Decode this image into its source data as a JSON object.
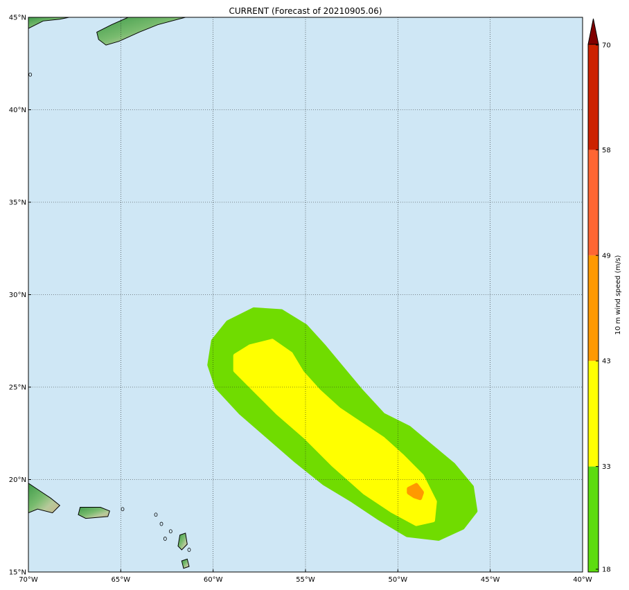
{
  "title": "CURRENT (Forecast of 20210905.06)",
  "map": {
    "lon_range": [
      -70,
      -40
    ],
    "lat_range": [
      15,
      45
    ],
    "lon_ticks": [
      {
        "value": -70,
        "label": "70°W"
      },
      {
        "value": -65,
        "label": "65°W"
      },
      {
        "value": -60,
        "label": "60°W"
      },
      {
        "value": -55,
        "label": "55°W"
      },
      {
        "value": -50,
        "label": "50°W"
      },
      {
        "value": -45,
        "label": "45°W"
      },
      {
        "value": -40,
        "label": "40°W"
      }
    ],
    "lat_ticks": [
      {
        "value": 15,
        "label": "15°N"
      },
      {
        "value": 20,
        "label": "20°N"
      },
      {
        "value": 25,
        "label": "25°N"
      },
      {
        "value": 30,
        "label": "30°N"
      },
      {
        "value": 35,
        "label": "35°N"
      },
      {
        "value": 40,
        "label": "40°N"
      },
      {
        "value": 45,
        "label": "45°N"
      }
    ],
    "ocean_color": "#cfe7f5",
    "grid": true,
    "swath": [
      {
        "threshold": 18,
        "color": "#70dc00",
        "lonlat": [
          [
            -57.8,
            29.2
          ],
          [
            -56.3,
            29.1
          ],
          [
            -55.0,
            28.3
          ],
          [
            -54.0,
            27.2
          ],
          [
            -53.0,
            26.0
          ],
          [
            -52.0,
            24.8
          ],
          [
            -50.8,
            23.5
          ],
          [
            -49.4,
            22.8
          ],
          [
            -48.2,
            21.8
          ],
          [
            -47.0,
            20.8
          ],
          [
            -46.0,
            19.6
          ],
          [
            -45.8,
            18.3
          ],
          [
            -46.5,
            17.4
          ],
          [
            -47.8,
            16.8
          ],
          [
            -49.5,
            17.0
          ],
          [
            -51.0,
            17.9
          ],
          [
            -52.5,
            18.9
          ],
          [
            -54.0,
            19.8
          ],
          [
            -55.5,
            21.0
          ],
          [
            -57.0,
            22.3
          ],
          [
            -58.5,
            23.6
          ],
          [
            -59.8,
            25.0
          ],
          [
            -60.2,
            26.2
          ],
          [
            -60.0,
            27.5
          ],
          [
            -59.2,
            28.5
          ]
        ]
      },
      {
        "threshold": 33,
        "color": "#ffff00",
        "lonlat": [
          [
            -58.0,
            27.2
          ],
          [
            -56.8,
            27.5
          ],
          [
            -55.8,
            26.8
          ],
          [
            -55.2,
            25.8
          ],
          [
            -54.3,
            24.8
          ],
          [
            -53.2,
            23.8
          ],
          [
            -52.0,
            23.0
          ],
          [
            -50.8,
            22.2
          ],
          [
            -49.8,
            21.3
          ],
          [
            -48.7,
            20.2
          ],
          [
            -48.0,
            18.8
          ],
          [
            -48.1,
            17.8
          ],
          [
            -49.0,
            17.6
          ],
          [
            -50.3,
            18.3
          ],
          [
            -51.8,
            19.3
          ],
          [
            -53.5,
            20.8
          ],
          [
            -55.0,
            22.3
          ],
          [
            -56.5,
            23.6
          ],
          [
            -57.8,
            24.9
          ],
          [
            -58.8,
            25.9
          ],
          [
            -58.8,
            26.7
          ]
        ]
      },
      {
        "threshold": 43,
        "color": "#ff9900",
        "lonlat": [
          [
            -49.4,
            19.5
          ],
          [
            -49.0,
            19.7
          ],
          [
            -48.7,
            19.3
          ],
          [
            -48.8,
            19.0
          ],
          [
            -49.1,
            19.1
          ],
          [
            -49.4,
            19.3
          ]
        ]
      }
    ],
    "land": [
      {
        "name": "nova-scotia-landmass",
        "lonlat": [
          [
            -70,
            44.4
          ],
          [
            -69.2,
            44.8
          ],
          [
            -68.3,
            44.9
          ],
          [
            -67.8,
            45.0
          ],
          [
            -70,
            45.0
          ]
        ]
      },
      {
        "name": "cape-breton-landmass",
        "lonlat": [
          [
            -66.3,
            44.2
          ],
          [
            -65.5,
            44.6
          ],
          [
            -64.6,
            45.0
          ],
          [
            -61.5,
            45.0
          ],
          [
            -63.0,
            44.6
          ],
          [
            -64.0,
            44.2
          ],
          [
            -65.1,
            43.7
          ],
          [
            -65.8,
            43.5
          ],
          [
            -66.2,
            43.8
          ]
        ]
      },
      {
        "name": "hispaniola-landmass",
        "lonlat": [
          [
            -70,
            19.8
          ],
          [
            -69.4,
            19.4
          ],
          [
            -68.8,
            19.0
          ],
          [
            -68.3,
            18.6
          ],
          [
            -68.7,
            18.2
          ],
          [
            -69.5,
            18.4
          ],
          [
            -70,
            18.2
          ]
        ]
      },
      {
        "name": "puerto-rico-landmass",
        "lonlat": [
          [
            -67.2,
            18.5
          ],
          [
            -66.1,
            18.5
          ],
          [
            -65.6,
            18.3
          ],
          [
            -65.7,
            18.0
          ],
          [
            -66.9,
            17.9
          ],
          [
            -67.3,
            18.1
          ]
        ]
      },
      {
        "name": "lesser-antilles-island",
        "lonlat": [
          [
            -61.8,
            17.0
          ],
          [
            -61.5,
            17.1
          ],
          [
            -61.4,
            16.5
          ],
          [
            -61.7,
            16.2
          ],
          [
            -61.9,
            16.4
          ]
        ]
      },
      {
        "name": "lesser-antilles-island",
        "lonlat": [
          [
            -61.7,
            15.6
          ],
          [
            -61.4,
            15.7
          ],
          [
            -61.3,
            15.3
          ],
          [
            -61.6,
            15.2
          ]
        ]
      }
    ],
    "coast_dots": [
      [
        -69.9,
        41.9
      ],
      [
        -64.9,
        18.4
      ],
      [
        -63.1,
        18.1
      ],
      [
        -62.8,
        17.6
      ],
      [
        -62.3,
        17.2
      ],
      [
        -62.6,
        16.8
      ],
      [
        -61.3,
        16.2
      ]
    ]
  },
  "colorbar": {
    "label": "10 m wind speed (m/s)",
    "min": 18,
    "max": 70,
    "levels": [
      {
        "from": 18,
        "to": 33,
        "color": "#5ddc10"
      },
      {
        "from": 33,
        "to": 43,
        "color": "#ffff00"
      },
      {
        "from": 43,
        "to": 49,
        "color": "#ff9900"
      },
      {
        "from": 49,
        "to": 58,
        "color": "#ff6633"
      },
      {
        "from": 58,
        "to": 70,
        "color": "#cc2200"
      }
    ],
    "extend_color": "#800000",
    "ticks": [
      {
        "value": 18,
        "label": "18"
      },
      {
        "value": 33,
        "label": "33"
      },
      {
        "value": 43,
        "label": "43"
      },
      {
        "value": 49,
        "label": "49"
      },
      {
        "value": 58,
        "label": "58"
      },
      {
        "value": 70,
        "label": "70"
      }
    ]
  }
}
